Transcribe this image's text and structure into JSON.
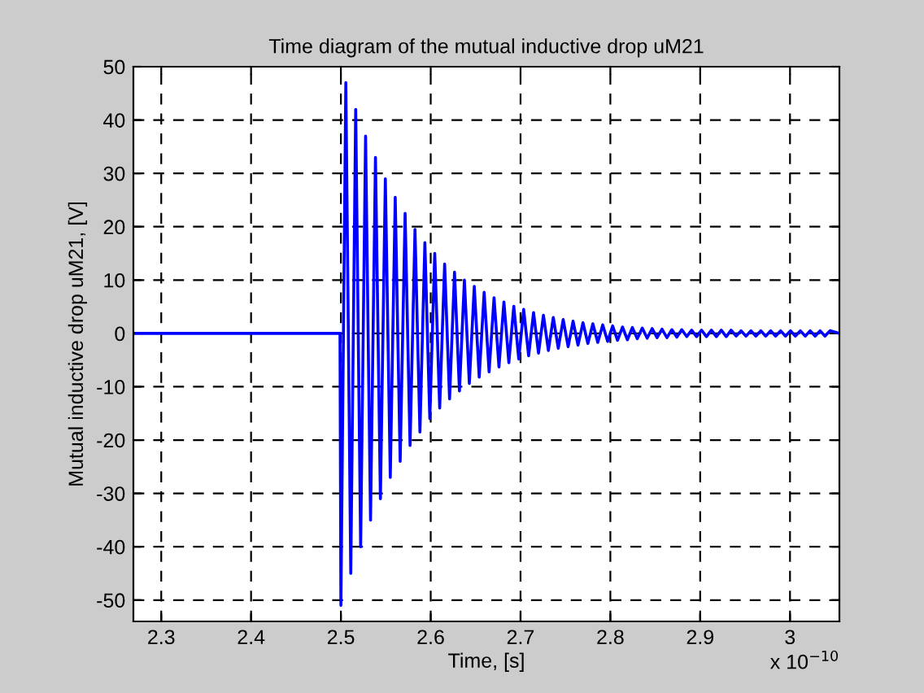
{
  "chart_data": {
    "type": "line",
    "title": "Time diagram of the mutual inductive drop uM21",
    "xlabel": "Time, [s]",
    "ylabel": "Mutual inductive drop uM21, [V]",
    "annotations": [
      "x 10$^{−10}$"
    ],
    "x": [
      2.269,
      2.499,
      2.5,
      2.5055,
      2.511,
      2.5165,
      2.522,
      2.5275,
      2.533,
      2.5385,
      2.544,
      2.5495,
      2.555,
      2.5605,
      2.566,
      2.5715,
      2.577,
      2.5825,
      2.588,
      2.5935,
      2.599,
      2.6045,
      2.61,
      2.6155,
      2.621,
      2.6265,
      2.632,
      2.6375,
      2.643,
      2.6485,
      2.654,
      2.6595,
      2.665,
      2.6705,
      2.676,
      2.6815,
      2.687,
      2.6925,
      2.698,
      2.7035,
      2.709,
      2.7145,
      2.72,
      2.7255,
      2.731,
      2.7365,
      2.742,
      2.7475,
      2.753,
      2.7585,
      2.764,
      2.7695,
      2.775,
      2.7805,
      2.786,
      2.7915,
      2.797,
      2.8025,
      2.808,
      2.8135,
      2.819,
      2.8245,
      2.83,
      2.8355,
      2.841,
      2.8465,
      2.852,
      2.8575,
      2.863,
      2.8685,
      2.874,
      2.8795,
      2.885,
      2.8905,
      2.896,
      2.9015,
      2.907,
      2.9125,
      2.918,
      2.9235,
      2.929,
      2.9345,
      2.94,
      2.9455,
      2.951,
      2.9565,
      2.962,
      2.9675,
      2.973,
      2.9785,
      2.984,
      2.9895,
      2.995,
      3.0005,
      3.006,
      3.0115,
      3.017,
      3.0225,
      3.028,
      3.0335,
      3.039,
      3.0445,
      3.055
    ],
    "series": [
      {
        "color": "#0000ff",
        "values": [
          0,
          0,
          -51,
          47,
          -45,
          42,
          -40,
          37,
          -35,
          33,
          -31,
          29,
          -27,
          25.5,
          -24,
          22.5,
          -21,
          19.5,
          -18.5,
          17,
          -16,
          15,
          -14,
          13,
          -12.3,
          11.5,
          -10.8,
          10,
          -9.4,
          8.8,
          -8.2,
          7.7,
          -7.2,
          6.7,
          -6.3,
          5.9,
          -5.5,
          5.1,
          -4.8,
          4.5,
          -4.2,
          3.9,
          -3.7,
          3.4,
          -3.2,
          3.0,
          -2.8,
          2.6,
          -2.5,
          2.3,
          -2.2,
          2.0,
          -1.9,
          1.8,
          -1.7,
          1.6,
          -1.5,
          1.4,
          -1.3,
          1.2,
          -1.2,
          1.1,
          -1.0,
          1.0,
          -0.9,
          0.9,
          -0.8,
          0.8,
          -0.8,
          0.7,
          -0.7,
          0.7,
          -0.6,
          0.6,
          -0.6,
          0.6,
          -0.6,
          0.6,
          -0.6,
          0.6,
          -0.6,
          0.6,
          -0.5,
          0.5,
          -0.5,
          0.5,
          -0.5,
          0.5,
          -0.5,
          0.5,
          -0.5,
          0.5,
          -0.5,
          0.5,
          -0.5,
          0.5,
          -0.5,
          0.5,
          -0.5,
          0.5,
          -0.5,
          0.5,
          0
        ]
      }
    ],
    "xlim": [
      2.269,
      3.055
    ],
    "xticks": [
      2.3,
      2.4,
      2.5,
      2.6,
      2.7,
      2.8,
      2.9,
      3
    ],
    "ylim": [
      -54,
      50
    ],
    "yticks": [
      -50,
      -40,
      -30,
      -20,
      -10,
      0,
      10,
      20,
      30,
      40,
      50
    ],
    "grid": true,
    "line_style": "solid",
    "marker": "none",
    "legend": false
  }
}
